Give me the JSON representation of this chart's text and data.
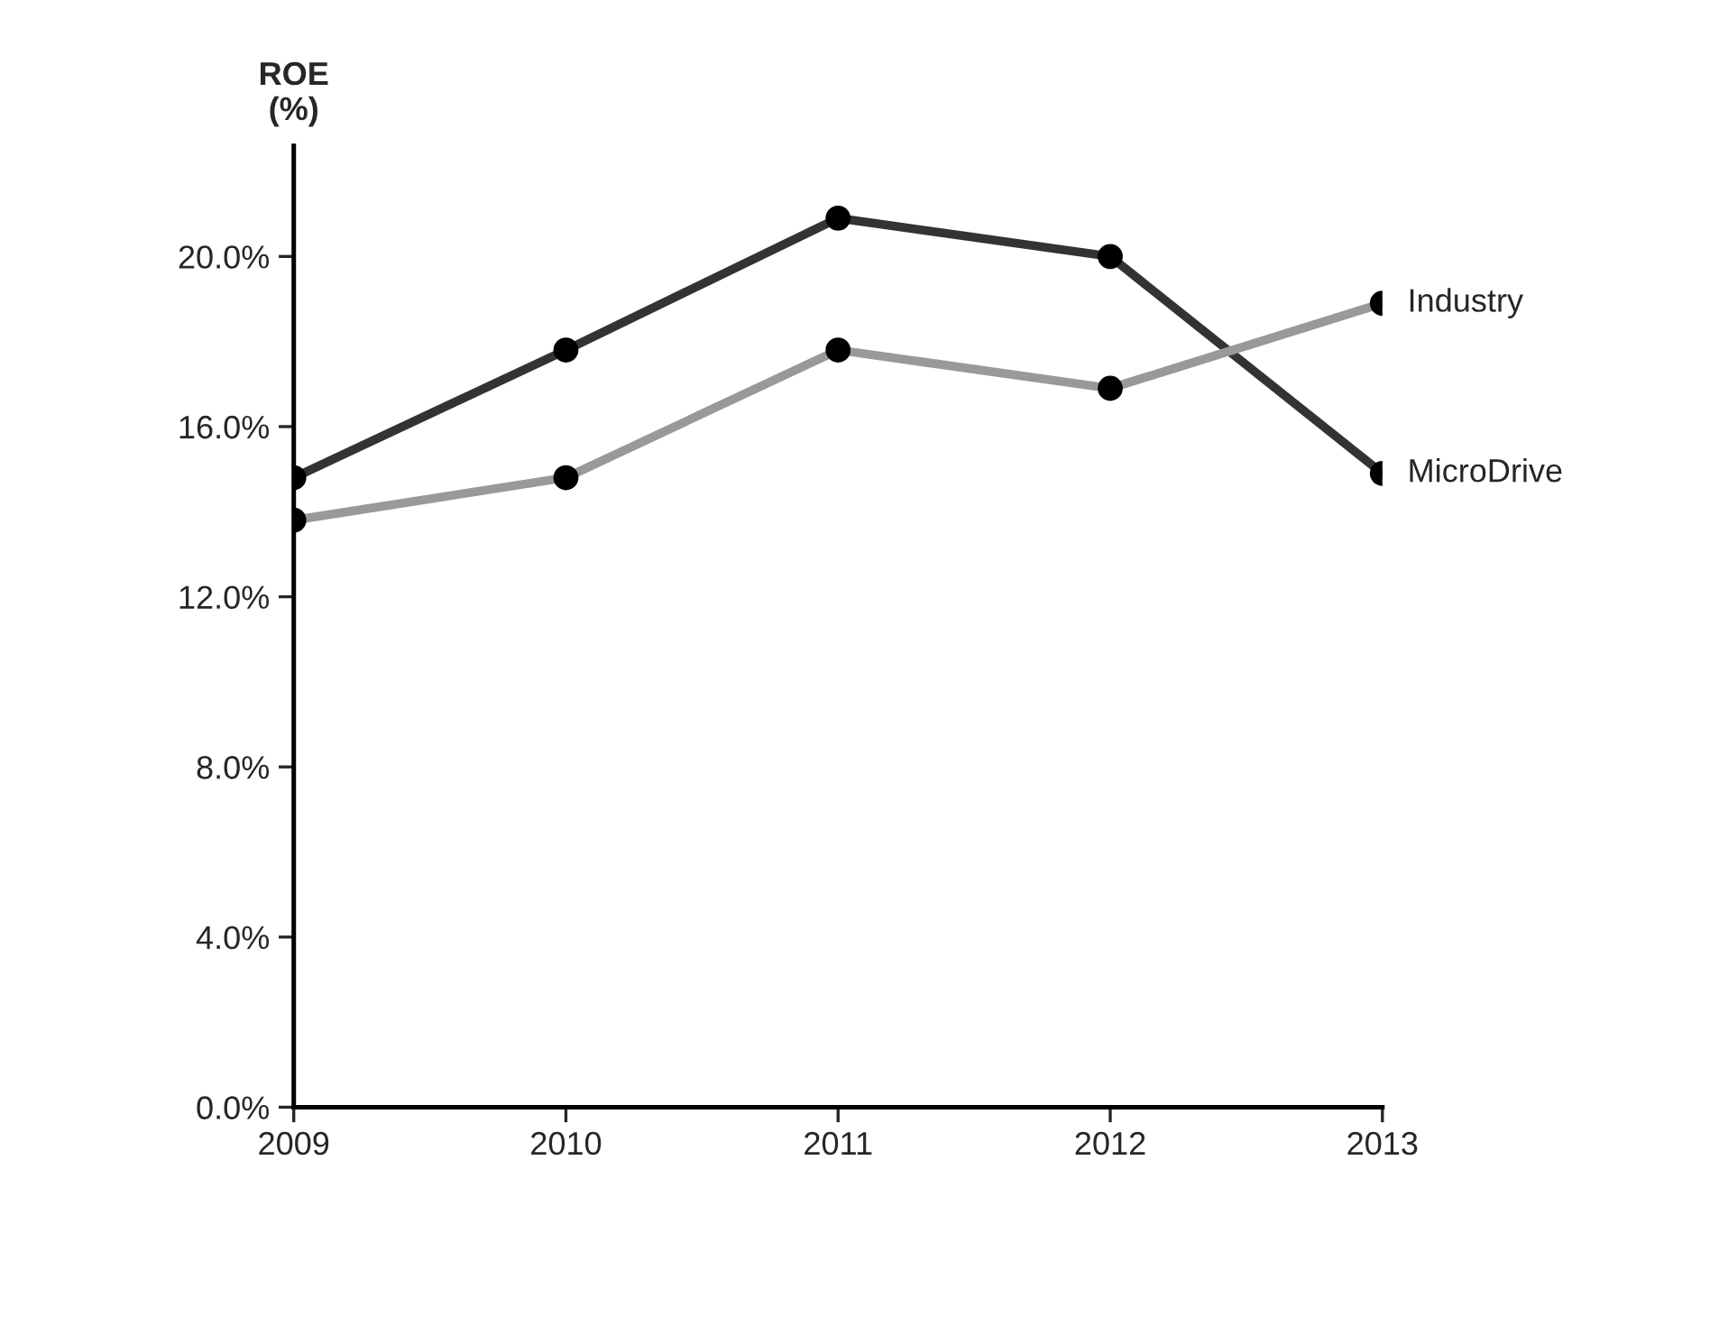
{
  "chart_data": {
    "type": "line",
    "ylabel": "ROE\n(%)",
    "categories": [
      "2009",
      "2010",
      "2011",
      "2012",
      "2013"
    ],
    "series": [
      {
        "name": "MicroDrive",
        "color": "#333333",
        "values": [
          14.8,
          17.8,
          20.9,
          20.0,
          14.9
        ]
      },
      {
        "name": "Industry",
        "color": "#999999",
        "values": [
          13.8,
          14.8,
          17.8,
          16.9,
          18.9
        ]
      }
    ],
    "ylim": [
      0,
      22.6
    ],
    "yticks": [
      {
        "value": 0,
        "label": "0.0%"
      },
      {
        "value": 4,
        "label": "4.0%"
      },
      {
        "value": 8,
        "label": "8.0%"
      },
      {
        "value": 12,
        "label": "12.0%"
      },
      {
        "value": 16,
        "label": "16.0%"
      },
      {
        "value": 20,
        "label": "20.0%"
      }
    ],
    "marker": "circle",
    "line_style": "solid",
    "grid": false,
    "legend": false
  }
}
